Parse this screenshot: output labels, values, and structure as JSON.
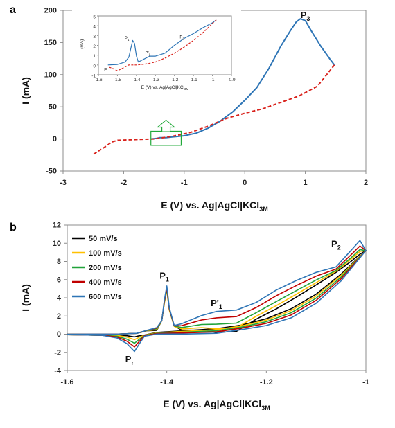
{
  "panels": {
    "a": {
      "label": "a"
    },
    "b": {
      "label": "b"
    }
  },
  "chart_data": [
    {
      "id": "panel-a",
      "type": "line",
      "xlabel": "E (V) vs. Ag|AgCl|KCl",
      "xlabel_sub": "3M",
      "ylabel": "I (mA)",
      "xlim": [
        -3,
        2
      ],
      "ylim": [
        -50,
        200
      ],
      "xticks": [
        "-3",
        "-2",
        "-1",
        "0",
        "1",
        "2"
      ],
      "yticks": [
        "-50",
        "0",
        "50",
        "100",
        "150",
        "200"
      ],
      "grid": false,
      "legend": "none",
      "series": [
        {
          "color": "#2E75B6",
          "dash": "solid",
          "x": [
            -1.55,
            -1.45,
            -1.4,
            -1.3,
            -1.2,
            -1.0,
            -0.8,
            -0.6,
            -0.4,
            -0.2,
            0.0,
            0.2,
            0.4,
            0.6,
            0.75,
            0.85,
            0.92,
            1.0,
            1.1,
            1.25,
            1.4,
            1.48
          ],
          "y": [
            0,
            1,
            2,
            2,
            3,
            5,
            9,
            17,
            28,
            42,
            60,
            80,
            110,
            145,
            168,
            182,
            187,
            184,
            168,
            145,
            125,
            115
          ]
        },
        {
          "color": "#D9221C",
          "dash": "dashed",
          "x": [
            1.48,
            1.2,
            0.9,
            0.6,
            0.3,
            0.0,
            -0.3,
            -0.6,
            -0.9,
            -1.2,
            -1.5,
            -1.8,
            -2.1,
            -2.2,
            -2.3,
            -2.4,
            -2.5
          ],
          "y": [
            115,
            82,
            67,
            57,
            47,
            40,
            32,
            20,
            10,
            4,
            0,
            -1,
            -2,
            -5,
            -12,
            -18,
            -24
          ]
        }
      ],
      "annotations": [
        {
          "text": "P",
          "sub": "3",
          "x": 1.0,
          "y": 188
        }
      ],
      "callout": {
        "color": "#22A93A"
      },
      "inset": {
        "xlabel": "E (V) vs. Ag|AgCl|KCl",
        "xlabel_sub": "3M",
        "ylabel": "I (mA)",
        "xlim": [
          -1.6,
          -0.9
        ],
        "ylim": [
          -1,
          5
        ],
        "xticks": [
          "-1.6",
          "-1.5",
          "-1.4",
          "-1.3",
          "-1.2",
          "-1.1",
          "-1",
          "-0.9"
        ],
        "yticks": [
          "-1",
          "0",
          "1",
          "2",
          "3",
          "4",
          "5"
        ],
        "series": [
          {
            "color": "#2E75B6",
            "dash": "solid",
            "x": [
              -1.55,
              -1.5,
              -1.46,
              -1.44,
              -1.42,
              -1.41,
              -1.4,
              -1.39,
              -1.36,
              -1.33,
              -1.3,
              -1.25,
              -1.2,
              -1.15,
              -1.1,
              -1.05,
              -1.0,
              -0.98
            ],
            "y": [
              0,
              0.05,
              0.3,
              0.8,
              2.5,
              2.2,
              0.9,
              0.3,
              0.6,
              0.9,
              0.9,
              1.2,
              2.0,
              2.7,
              3.2,
              3.8,
              4.3,
              4.6
            ]
          },
          {
            "color": "#D9221C",
            "dash": "dashed",
            "x": [
              -0.98,
              -1.05,
              -1.1,
              -1.15,
              -1.2,
              -1.25,
              -1.3,
              -1.35,
              -1.4,
              -1.44,
              -1.47,
              -1.5,
              -1.53,
              -1.55
            ],
            "y": [
              4.6,
              3.3,
              2.5,
              1.8,
              1.2,
              0.7,
              0.3,
              0.1,
              0,
              0,
              -0.3,
              -0.6,
              -0.3,
              -0.2
            ]
          }
        ],
        "annotations": [
          {
            "text": "P",
            "sub": "1",
            "x": -1.45,
            "y": 2.6
          },
          {
            "text": "P'",
            "sub": "1",
            "x": -1.34,
            "y": 1.1
          },
          {
            "text": "P",
            "sub": "2",
            "x": -1.16,
            "y": 2.7
          },
          {
            "text": "P",
            "sub": "r",
            "x": -1.56,
            "y": -0.6
          }
        ]
      }
    },
    {
      "id": "panel-b",
      "type": "line",
      "xlabel": "E (V) vs. Ag|AgCl|KCl",
      "xlabel_sub": "3M",
      "ylabel": "I (mA)",
      "xlim": [
        -1.6,
        -1.0
      ],
      "ylim": [
        -4,
        12
      ],
      "xticks": [
        "-1.6",
        "-1.4",
        "-1.2",
        "-1"
      ],
      "yticks": [
        "-4",
        "-2",
        "0",
        "2",
        "4",
        "6",
        "8",
        "10",
        "12"
      ],
      "grid": false,
      "legend": "top-left",
      "series": [
        {
          "name": "50 mV/s",
          "color": "#000000",
          "peak": 5.0,
          "rev": 0.5,
          "p1p": 0.2,
          "p2": 8.8,
          "pr": -0.3,
          "ret": 0.0
        },
        {
          "name": "100 mV/s",
          "color": "#FFC000",
          "peak": 4.8,
          "rev": 0.6,
          "p1p": 0.6,
          "p2": 9.1,
          "pr": -0.6,
          "ret": 0.25
        },
        {
          "name": "200 mV/s",
          "color": "#21A33A",
          "peak": 5.0,
          "rev": 0.7,
          "p1p": 1.1,
          "p2": 9.3,
          "pr": -1.0,
          "ret": 0.55
        },
        {
          "name": "400 mV/s",
          "color": "#C00000",
          "peak": 5.1,
          "rev": 0.8,
          "p1p": 1.8,
          "p2": 9.7,
          "pr": -1.4,
          "ret": 0.85
        },
        {
          "name": "600 mV/s",
          "color": "#2E75B6",
          "peak": 5.3,
          "rev": 0.85,
          "p1p": 2.5,
          "p2": 10.3,
          "pr": -1.9,
          "ret": 1.25
        }
      ],
      "annotations": [
        {
          "text": "P",
          "sub": "1",
          "x": -1.405,
          "y": 6.1
        },
        {
          "text": "P'",
          "sub": "1",
          "x": -1.3,
          "y": 3.1
        },
        {
          "text": "P",
          "sub": "2",
          "x": -1.06,
          "y": 9.6
        },
        {
          "text": "P",
          "sub": "r",
          "x": -1.475,
          "y": -3.1
        }
      ]
    }
  ]
}
